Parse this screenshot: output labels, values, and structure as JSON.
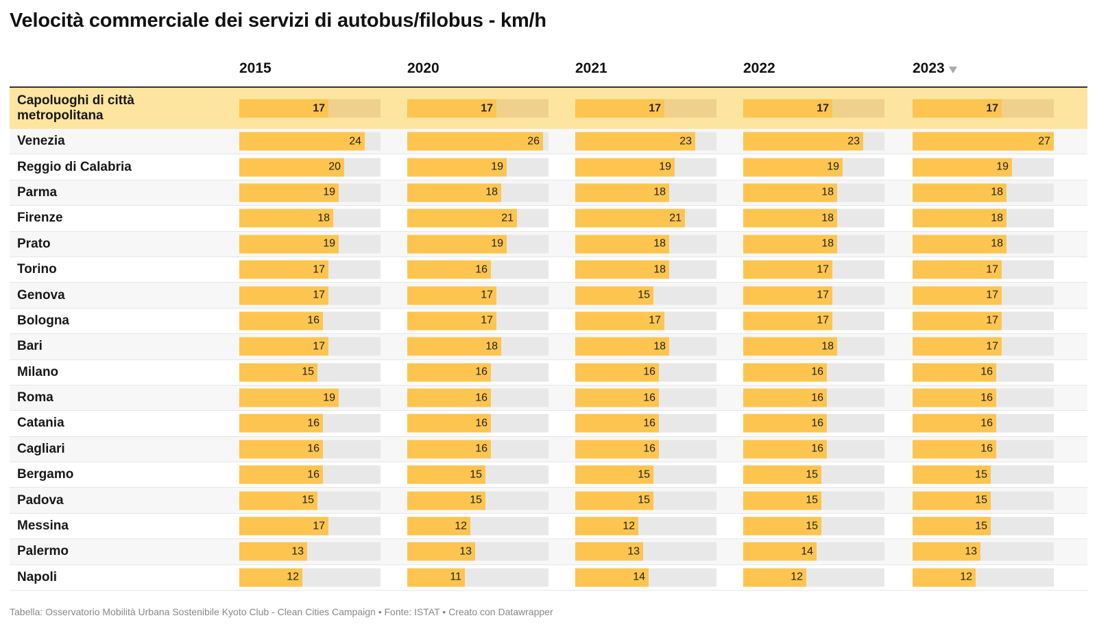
{
  "title": "Velocità commerciale dei servizi di autobus/filobus - km/h",
  "footer": "Tabella: Osservatorio Mobilità Urbana Sostenibile Kyoto Club - Clean Cities Campaign • Fonte: ISTAT • Creato con Datawrapper",
  "sort_icon": "triangle-down-icon",
  "colors": {
    "bar": "#fdc54f",
    "track": "#e8e8e8",
    "highlight_row": "#fde59f",
    "highlight_track": "#efd18b"
  },
  "chart_data": {
    "type": "table",
    "title": "Velocità commerciale dei servizi di autobus/filobus - km/h",
    "columns": [
      "2015",
      "2020",
      "2021",
      "2022",
      "2023"
    ],
    "sorted_by": "2023",
    "sort_direction": "descending",
    "bar_max": 27,
    "highlight_row": 0,
    "rows": [
      {
        "label": "Capoluoghi di città metropolitana",
        "values": [
          17,
          17,
          17,
          17,
          17
        ]
      },
      {
        "label": "Venezia",
        "values": [
          24,
          26,
          23,
          23,
          27
        ]
      },
      {
        "label": "Reggio di Calabria",
        "values": [
          20,
          19,
          19,
          19,
          19
        ]
      },
      {
        "label": "Parma",
        "values": [
          19,
          18,
          18,
          18,
          18
        ]
      },
      {
        "label": "Firenze",
        "values": [
          18,
          21,
          21,
          18,
          18
        ]
      },
      {
        "label": "Prato",
        "values": [
          19,
          19,
          18,
          18,
          18
        ]
      },
      {
        "label": "Torino",
        "values": [
          17,
          16,
          18,
          17,
          17
        ]
      },
      {
        "label": "Genova",
        "values": [
          17,
          17,
          15,
          17,
          17
        ]
      },
      {
        "label": "Bologna",
        "values": [
          16,
          17,
          17,
          17,
          17
        ]
      },
      {
        "label": "Bari",
        "values": [
          17,
          18,
          18,
          18,
          17
        ]
      },
      {
        "label": "Milano",
        "values": [
          15,
          16,
          16,
          16,
          16
        ]
      },
      {
        "label": "Roma",
        "values": [
          19,
          16,
          16,
          16,
          16
        ]
      },
      {
        "label": "Catania",
        "values": [
          16,
          16,
          16,
          16,
          16
        ]
      },
      {
        "label": "Cagliari",
        "values": [
          16,
          16,
          16,
          16,
          16
        ]
      },
      {
        "label": "Bergamo",
        "values": [
          16,
          15,
          15,
          15,
          15
        ]
      },
      {
        "label": "Padova",
        "values": [
          15,
          15,
          15,
          15,
          15
        ]
      },
      {
        "label": "Messina",
        "values": [
          17,
          12,
          12,
          15,
          15
        ]
      },
      {
        "label": "Palermo",
        "values": [
          13,
          13,
          13,
          14,
          13
        ]
      },
      {
        "label": "Napoli",
        "values": [
          12,
          11,
          14,
          12,
          12
        ]
      }
    ]
  }
}
